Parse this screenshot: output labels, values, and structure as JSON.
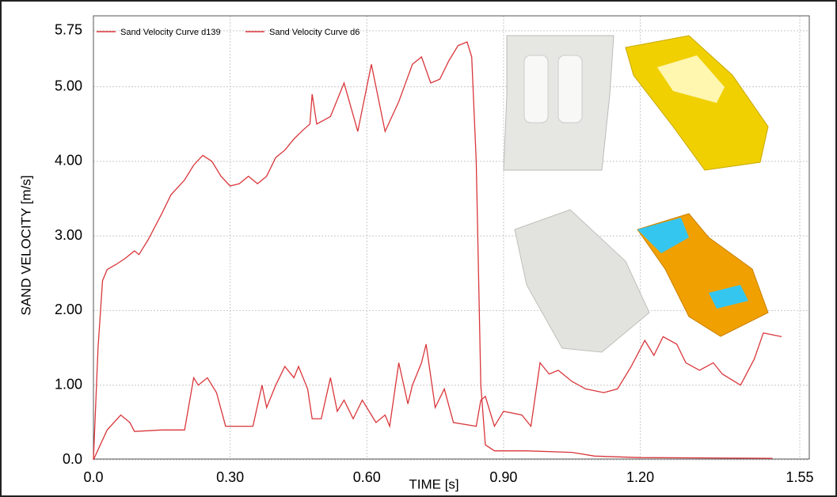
{
  "chart_data": {
    "type": "line",
    "xlabel": "TIME [s]",
    "ylabel": "SAND VELOCITY [m/s]",
    "xlim": [
      0,
      1.55
    ],
    "ylim": [
      0,
      5.95
    ],
    "xticks": [
      {
        "value": 0,
        "label": "0.0"
      },
      {
        "value": 0.3,
        "label": "0.30"
      },
      {
        "value": 0.6,
        "label": "0.60"
      },
      {
        "value": 0.9,
        "label": "0.90"
      },
      {
        "value": 1.2,
        "label": "1.20"
      },
      1.55
    ],
    "yticks": [
      {
        "value": 0,
        "label": "0.0"
      },
      {
        "value": 1,
        "label": "1.00"
      },
      {
        "value": 2,
        "label": "2.00"
      },
      {
        "value": 3,
        "label": "3.00"
      },
      {
        "value": 4,
        "label": "4.00"
      },
      {
        "value": 5,
        "label": "5.00"
      },
      5.75
    ],
    "grid": true,
    "series": [
      {
        "name": "Sand Velocity Curve d139",
        "color": "#d9363b",
        "x": [
          0,
          0.01,
          0.02,
          0.03,
          0.05,
          0.07,
          0.09,
          0.1,
          0.12,
          0.15,
          0.17,
          0.2,
          0.22,
          0.24,
          0.26,
          0.28,
          0.3,
          0.32,
          0.34,
          0.36,
          0.38,
          0.4,
          0.42,
          0.44,
          0.46,
          0.475,
          0.48,
          0.49,
          0.52,
          0.55,
          0.58,
          0.61,
          0.64,
          0.67,
          0.7,
          0.72,
          0.74,
          0.76,
          0.78,
          0.8,
          0.82,
          0.83,
          0.84,
          0.85,
          0.86,
          0.88,
          0.95,
          1.05,
          1.1,
          1.2,
          1.49
        ],
        "values": [
          0,
          1.5,
          2.4,
          2.55,
          2.62,
          2.7,
          2.8,
          2.75,
          2.95,
          3.3,
          3.55,
          3.75,
          3.95,
          4.08,
          4.0,
          3.8,
          3.67,
          3.7,
          3.8,
          3.7,
          3.8,
          4.05,
          4.15,
          4.3,
          4.42,
          4.5,
          4.9,
          4.5,
          4.6,
          5.05,
          4.4,
          5.3,
          4.4,
          4.8,
          5.3,
          5.4,
          5.05,
          5.1,
          5.35,
          5.55,
          5.6,
          5.4,
          4.0,
          1.0,
          0.2,
          0.12,
          0.12,
          0.1,
          0.05,
          0.03,
          0.02
        ]
      },
      {
        "name": "Sand Velocity Curve d6",
        "color": "#d9363b",
        "x": [
          0,
          0.03,
          0.06,
          0.08,
          0.09,
          0.15,
          0.2,
          0.22,
          0.23,
          0.25,
          0.27,
          0.29,
          0.35,
          0.37,
          0.38,
          0.4,
          0.42,
          0.44,
          0.45,
          0.47,
          0.48,
          0.5,
          0.52,
          0.535,
          0.55,
          0.57,
          0.59,
          0.62,
          0.64,
          0.65,
          0.67,
          0.69,
          0.7,
          0.72,
          0.73,
          0.75,
          0.77,
          0.79,
          0.84,
          0.85,
          0.86,
          0.88,
          0.9,
          0.94,
          0.96,
          0.98,
          1.0,
          1.02,
          1.05,
          1.08,
          1.12,
          1.15,
          1.18,
          1.21,
          1.23,
          1.25,
          1.28,
          1.3,
          1.33,
          1.36,
          1.38,
          1.42,
          1.45,
          1.47,
          1.51
        ],
        "values": [
          0,
          0.4,
          0.6,
          0.5,
          0.38,
          0.4,
          0.4,
          1.1,
          1.0,
          1.1,
          0.9,
          0.45,
          0.45,
          1.0,
          0.7,
          1.0,
          1.25,
          1.1,
          1.25,
          0.95,
          0.55,
          0.55,
          1.1,
          0.65,
          0.8,
          0.55,
          0.8,
          0.5,
          0.6,
          0.45,
          1.3,
          0.75,
          1.0,
          1.3,
          1.55,
          0.7,
          0.95,
          0.5,
          0.45,
          0.8,
          0.85,
          0.45,
          0.65,
          0.6,
          0.45,
          1.3,
          1.15,
          1.2,
          1.05,
          0.95,
          0.9,
          0.95,
          1.25,
          1.6,
          1.4,
          1.65,
          1.55,
          1.3,
          1.2,
          1.3,
          1.15,
          1.0,
          1.35,
          1.7,
          1.65
        ]
      }
    ]
  }
}
